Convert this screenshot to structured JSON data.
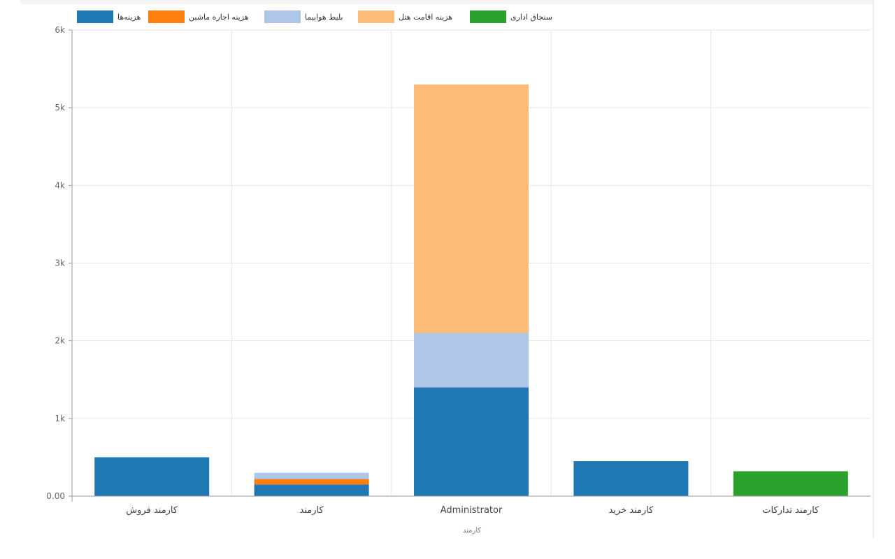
{
  "chart_data": {
    "type": "bar",
    "stacked": true,
    "title": "",
    "xlabel": "کارمند",
    "ylabel": "",
    "ylim": [
      0,
      6000
    ],
    "yticks": [
      0,
      1000,
      2000,
      3000,
      4000,
      5000,
      6000
    ],
    "ytick_labels": [
      "0.00",
      "1k",
      "2k",
      "3k",
      "4k",
      "5k",
      "6k"
    ],
    "grid": true,
    "legend_position": "top",
    "categories": [
      "کارمند فروش",
      "کارمند",
      "Administrator",
      "کارمند خرید",
      "کارمند تدارکات"
    ],
    "series": [
      {
        "name": "هزینه‌ها",
        "color": "#1f77b4",
        "values": [
          500,
          150,
          1400,
          450,
          0
        ]
      },
      {
        "name": "هزینه اجاره ماشین",
        "color": "#ff7f0e",
        "values": [
          0,
          70,
          0,
          0,
          0
        ]
      },
      {
        "name": "بلیط هواپیما",
        "color": "#aec7e8",
        "values": [
          0,
          80,
          700,
          0,
          0
        ]
      },
      {
        "name": "هزینه اقامت هتل",
        "color": "#ffbb78",
        "values": [
          0,
          0,
          3200,
          0,
          0
        ]
      },
      {
        "name": "سنجاق اداری",
        "color": "#2ca02c",
        "values": [
          0,
          0,
          0,
          0,
          320
        ]
      }
    ]
  }
}
